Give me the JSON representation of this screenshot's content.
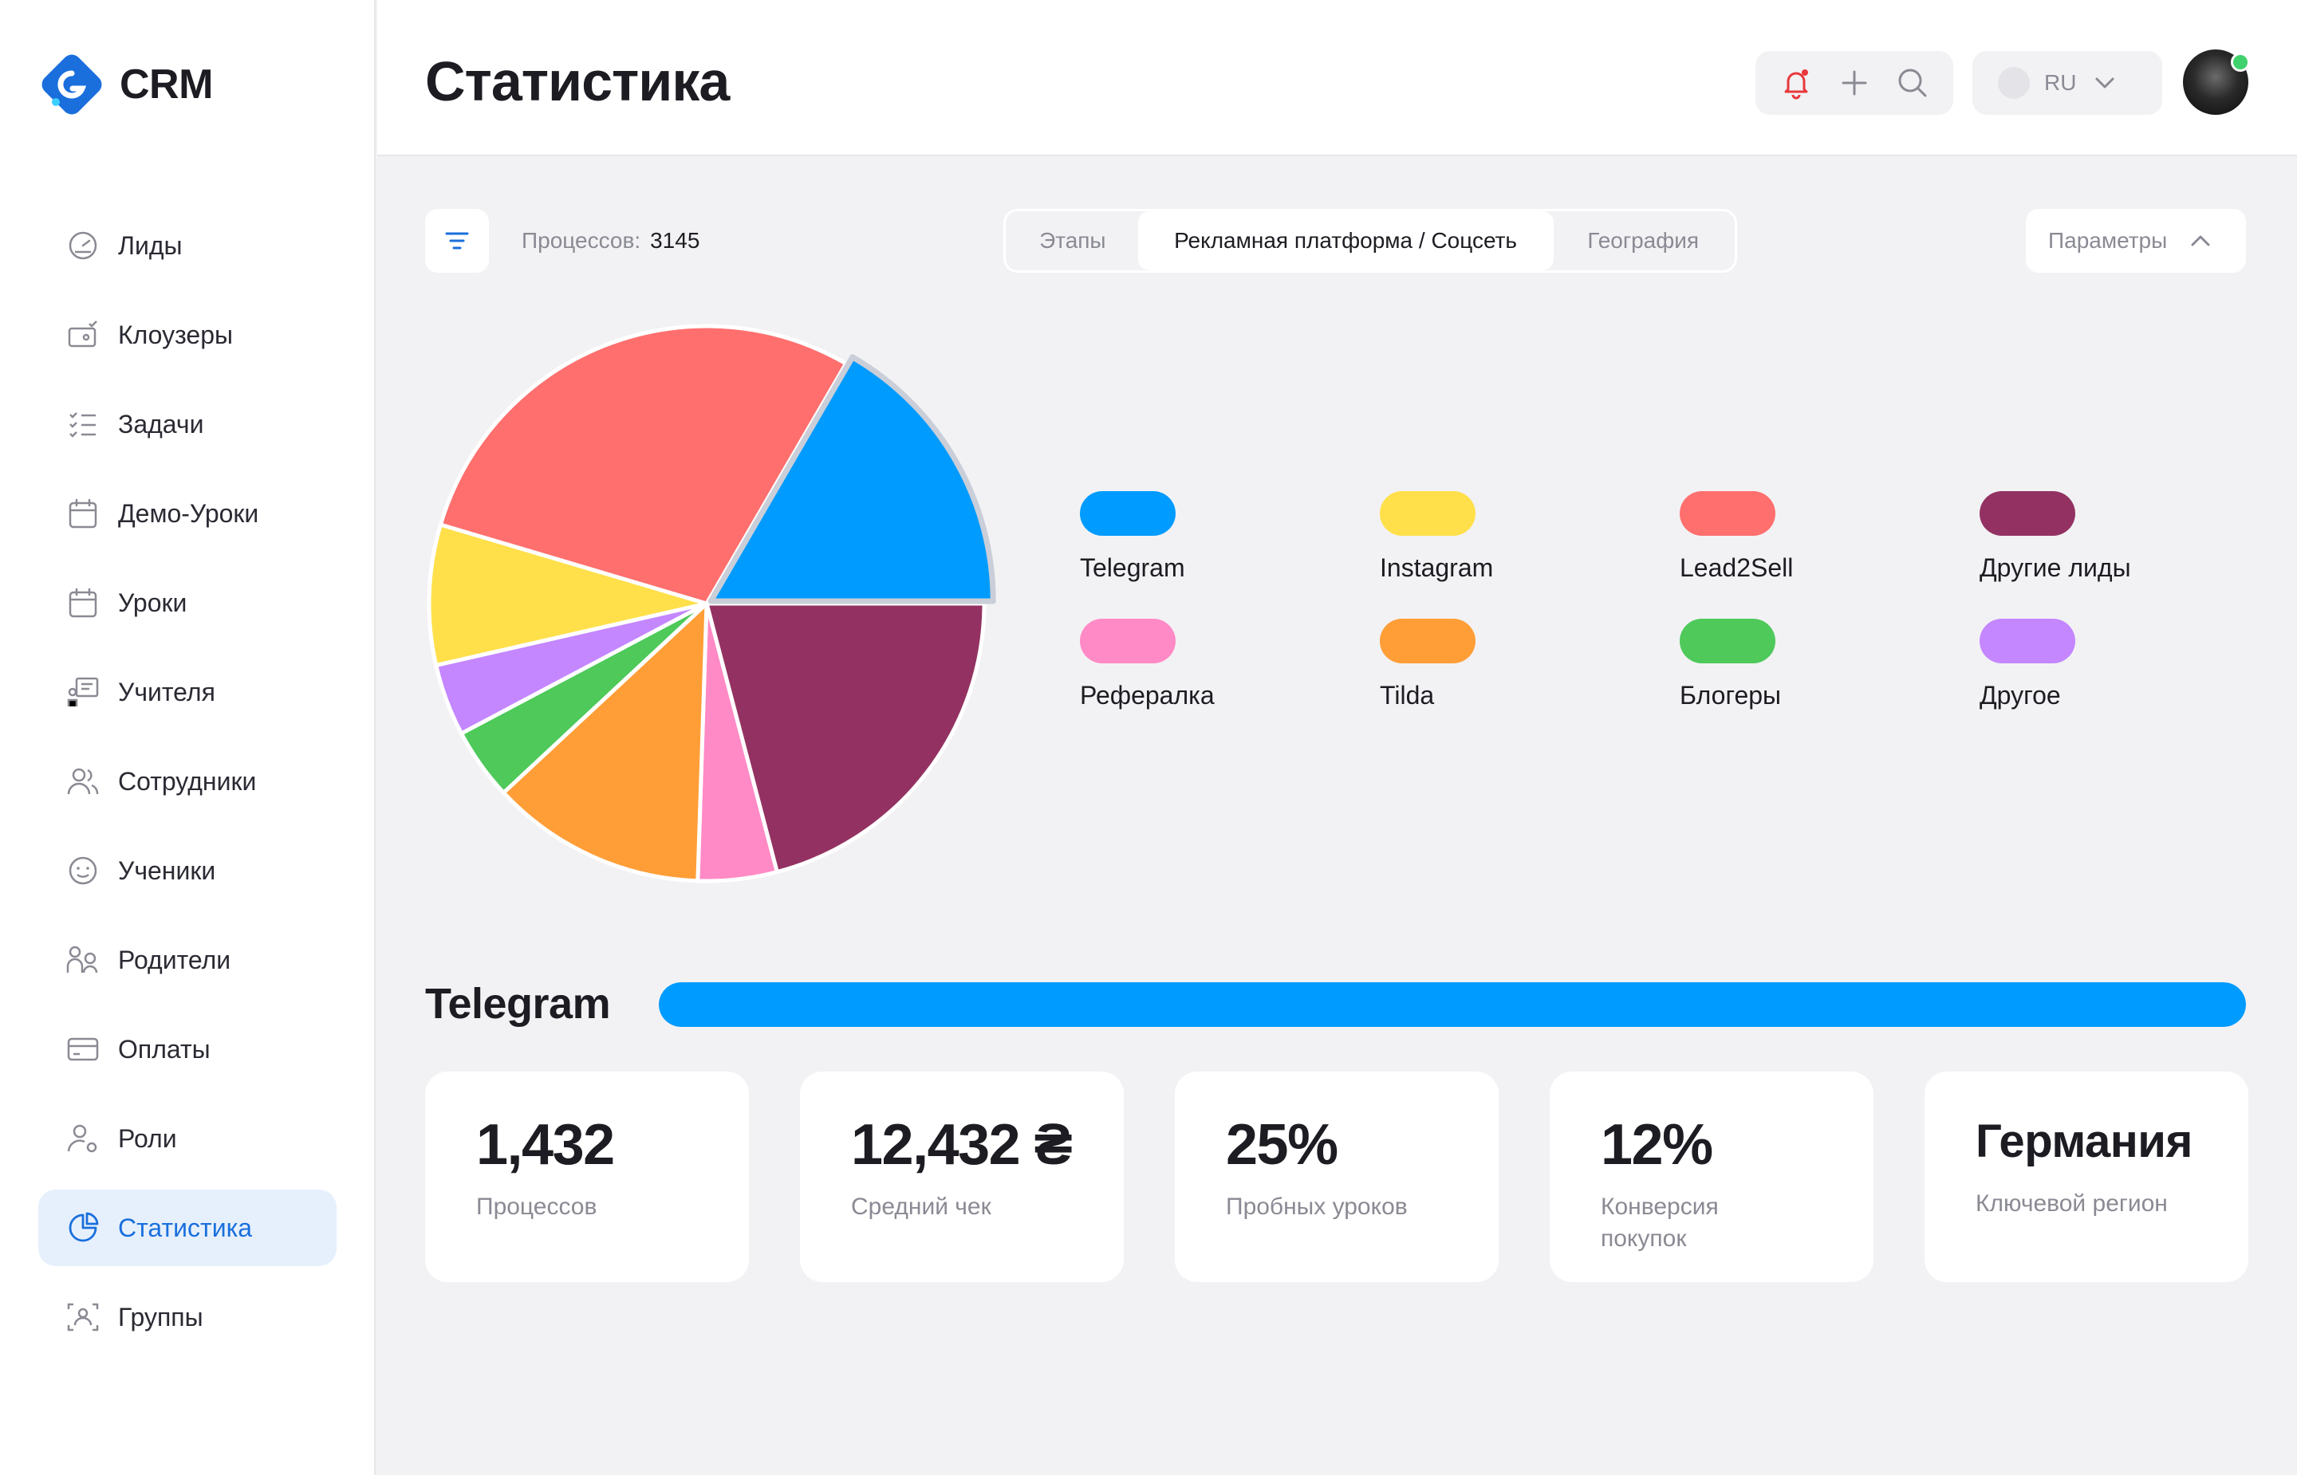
{
  "app": {
    "logo_text": "CRM"
  },
  "sidebar": {
    "items": [
      {
        "label": "Лиды",
        "icon": "leads-gauge-icon",
        "name": "sidebar-item-leads",
        "active": false
      },
      {
        "label": "Клоузеры",
        "icon": "wallet-check-icon",
        "name": "sidebar-item-closers",
        "active": false
      },
      {
        "label": "Задачи",
        "icon": "checklist-icon",
        "name": "sidebar-item-tasks",
        "active": false
      },
      {
        "label": "Демо-Уроки",
        "icon": "calendar-icon",
        "name": "sidebar-item-demo-lessons",
        "active": false
      },
      {
        "label": "Уроки",
        "icon": "calendar-icon",
        "name": "sidebar-item-lessons",
        "active": false
      },
      {
        "label": "Учителя",
        "icon": "teacher-board-icon",
        "name": "sidebar-item-teachers",
        "active": false
      },
      {
        "label": "Сотрудники",
        "icon": "users-icon",
        "name": "sidebar-item-employees",
        "active": false
      },
      {
        "label": "Ученики",
        "icon": "smile-icon",
        "name": "sidebar-item-students",
        "active": false
      },
      {
        "label": "Родители",
        "icon": "parents-icon",
        "name": "sidebar-item-parents",
        "active": false
      },
      {
        "label": "Оплаты",
        "icon": "credit-card-icon",
        "name": "sidebar-item-payments",
        "active": false
      },
      {
        "label": "Роли",
        "icon": "user-gear-icon",
        "name": "sidebar-item-roles",
        "active": false
      },
      {
        "label": "Статистика",
        "icon": "pie-chart-icon",
        "name": "sidebar-item-statistics",
        "active": true
      },
      {
        "label": "Группы",
        "icon": "group-scan-icon",
        "name": "sidebar-item-groups",
        "active": false
      }
    ]
  },
  "header": {
    "title": "Статистика",
    "language": "RU",
    "icons": [
      "bell-icon",
      "plus-icon",
      "search-icon",
      "chevron-down-icon"
    ]
  },
  "toolbar": {
    "processes_label": "Процессов:",
    "processes_value": "3145",
    "tabs": [
      "Этапы",
      "Рекламная платформа / Соцсеть",
      "География"
    ],
    "active_tab": 1,
    "params_label": "Параметры"
  },
  "colors": {
    "accent": "#1a6fdc",
    "active_nav_bg": "#e6f0fd",
    "notification": "#e8383d"
  },
  "chart_data": {
    "type": "pie",
    "legend_position": "right",
    "series": [
      {
        "name": "Telegram",
        "value": 16.3,
        "color": "#009bff"
      },
      {
        "name": "Instagram",
        "value": 8.0,
        "color": "#ffe04a"
      },
      {
        "name": "Lead2Sell",
        "value": 28.2,
        "color": "#ff6f6e"
      },
      {
        "name": "Другие лиды",
        "value": 20.5,
        "color": "#933262"
      },
      {
        "name": "Рефералка",
        "value": 4.5,
        "color": "#ff8ac6"
      },
      {
        "name": "Tilda",
        "value": 12.3,
        "color": "#ff9e37"
      },
      {
        "name": "Блогеры",
        "value": 4.1,
        "color": "#4ec95a"
      },
      {
        "name": "Другое",
        "value": 4.1,
        "color": "#c487ff"
      }
    ],
    "pie_order": [
      "Другие лиды",
      "Рефералка",
      "Tilda",
      "Блогеры",
      "Другое",
      "Instagram",
      "Lead2Sell",
      "Telegram"
    ],
    "highlighted": "Telegram"
  },
  "selected": {
    "title": "Telegram",
    "bar_color": "#009bff",
    "bar_fraction": 1.0,
    "cards": [
      {
        "value": "1,432",
        "label": "Процессов"
      },
      {
        "value": "12,432 ₴",
        "label": "Средний чек"
      },
      {
        "value": "25%",
        "label": "Пробных уроков"
      },
      {
        "value": "12%",
        "label": "Конверсия покупок"
      },
      {
        "value": "Германия",
        "label": "Ключевой регион"
      }
    ]
  }
}
